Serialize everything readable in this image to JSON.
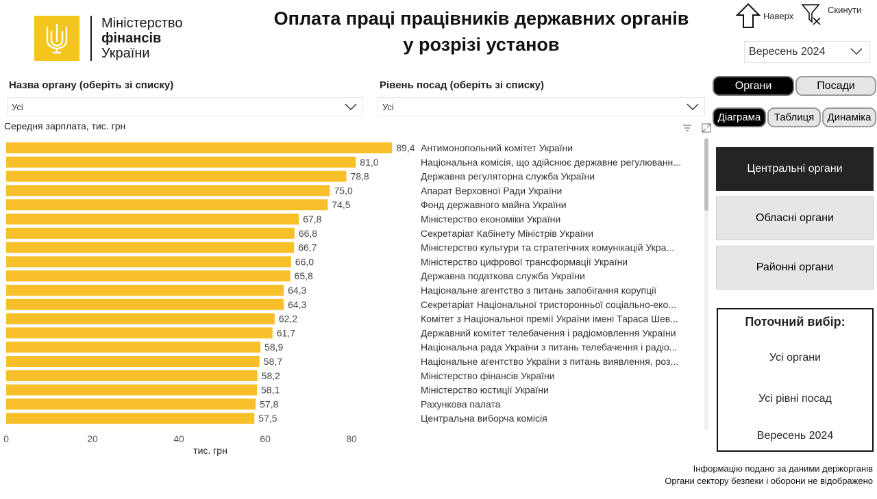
{
  "logo": {
    "line1": "Міністерство",
    "line2": "фінансів",
    "line3": "України"
  },
  "title": {
    "line1": "Оплата праці працівників державних органів",
    "line2": "у розрізі установ"
  },
  "nav": {
    "up_label": "Наверх",
    "reset_label": "Скинути"
  },
  "period": {
    "selected": "Вересень 2024"
  },
  "filters": {
    "org_label": "Назва органу (оберіть зі списку)",
    "org_value": "Усі",
    "level_label": "Рівень посад (оберіть зі списку)",
    "level_value": "Усі"
  },
  "view_toggle": {
    "organs": "Органи",
    "positions": "Посади"
  },
  "mode_toggle": {
    "chart": "Діаграма",
    "table": "Таблиця",
    "dynamics": "Динаміка"
  },
  "categories": [
    {
      "label": "Центральні органи",
      "active": true
    },
    {
      "label": "Обласні органи",
      "active": false
    },
    {
      "label": "Районні органи",
      "active": false
    }
  ],
  "selection": {
    "title": "Поточний вибір:",
    "org": "Усі органи",
    "level": "Усі рівні посад",
    "period": "Вересень 2024"
  },
  "footnotes": {
    "line1": "Інформацію подано за даними держорганів",
    "line2": "Органи сектору безпеки і оборони не відображено"
  },
  "colors": {
    "bar": "#f7bf2a",
    "dark": "#252423",
    "logo": "#f4c51d"
  },
  "chart_data": {
    "type": "bar",
    "orientation": "horizontal",
    "title": "Середня зарплата, тис. грн",
    "xlabel": "тис. грн",
    "xlim": [
      0,
      89.4
    ],
    "xticks": [
      0,
      20,
      40,
      60,
      80
    ],
    "categories": [
      "Антимонопольний комітет України",
      "Національна комісія, що здійснює державне регулюванн...",
      "Державна регуляторна служба України",
      "Апарат Верховної Ради України",
      "Фонд державного майна України",
      "Міністерство економіки України",
      "Секретаріат Кабінету Міністрів України",
      "Міністерство культури та стратегічних комунікацій Укра...",
      "Міністерство цифрової трансформації України",
      "Державна податкова служба України",
      "Національне агентство з питань запобігання корупції",
      "Секретаріат Національної тристоронньої соціально-еко...",
      "Комітет з Національної премії України імені Тараса Шев...",
      "Державний комітет телебачення і радіомовлення України",
      "Національна рада України з питань телебачення і радіо...",
      "Національне агентство України з питань виявлення, роз...",
      "Міністерство фінансів України",
      "Міністерство юстиції України",
      "Рахункова палата",
      "Центральна виборча комісія"
    ],
    "values": [
      89.4,
      81.0,
      78.8,
      75.0,
      74.5,
      67.8,
      66.8,
      66.7,
      66.0,
      65.8,
      64.3,
      64.3,
      62.2,
      61.7,
      58.9,
      58.7,
      58.2,
      58.1,
      57.8,
      57.5
    ],
    "value_labels": [
      "89,4",
      "81,0",
      "78,8",
      "75,0",
      "74,5",
      "67,8",
      "66,8",
      "66,7",
      "66,0",
      "65,8",
      "64,3",
      "64,3",
      "62,2",
      "61,7",
      "58,9",
      "58,7",
      "58,2",
      "58,1",
      "57,8",
      "57,5"
    ]
  }
}
